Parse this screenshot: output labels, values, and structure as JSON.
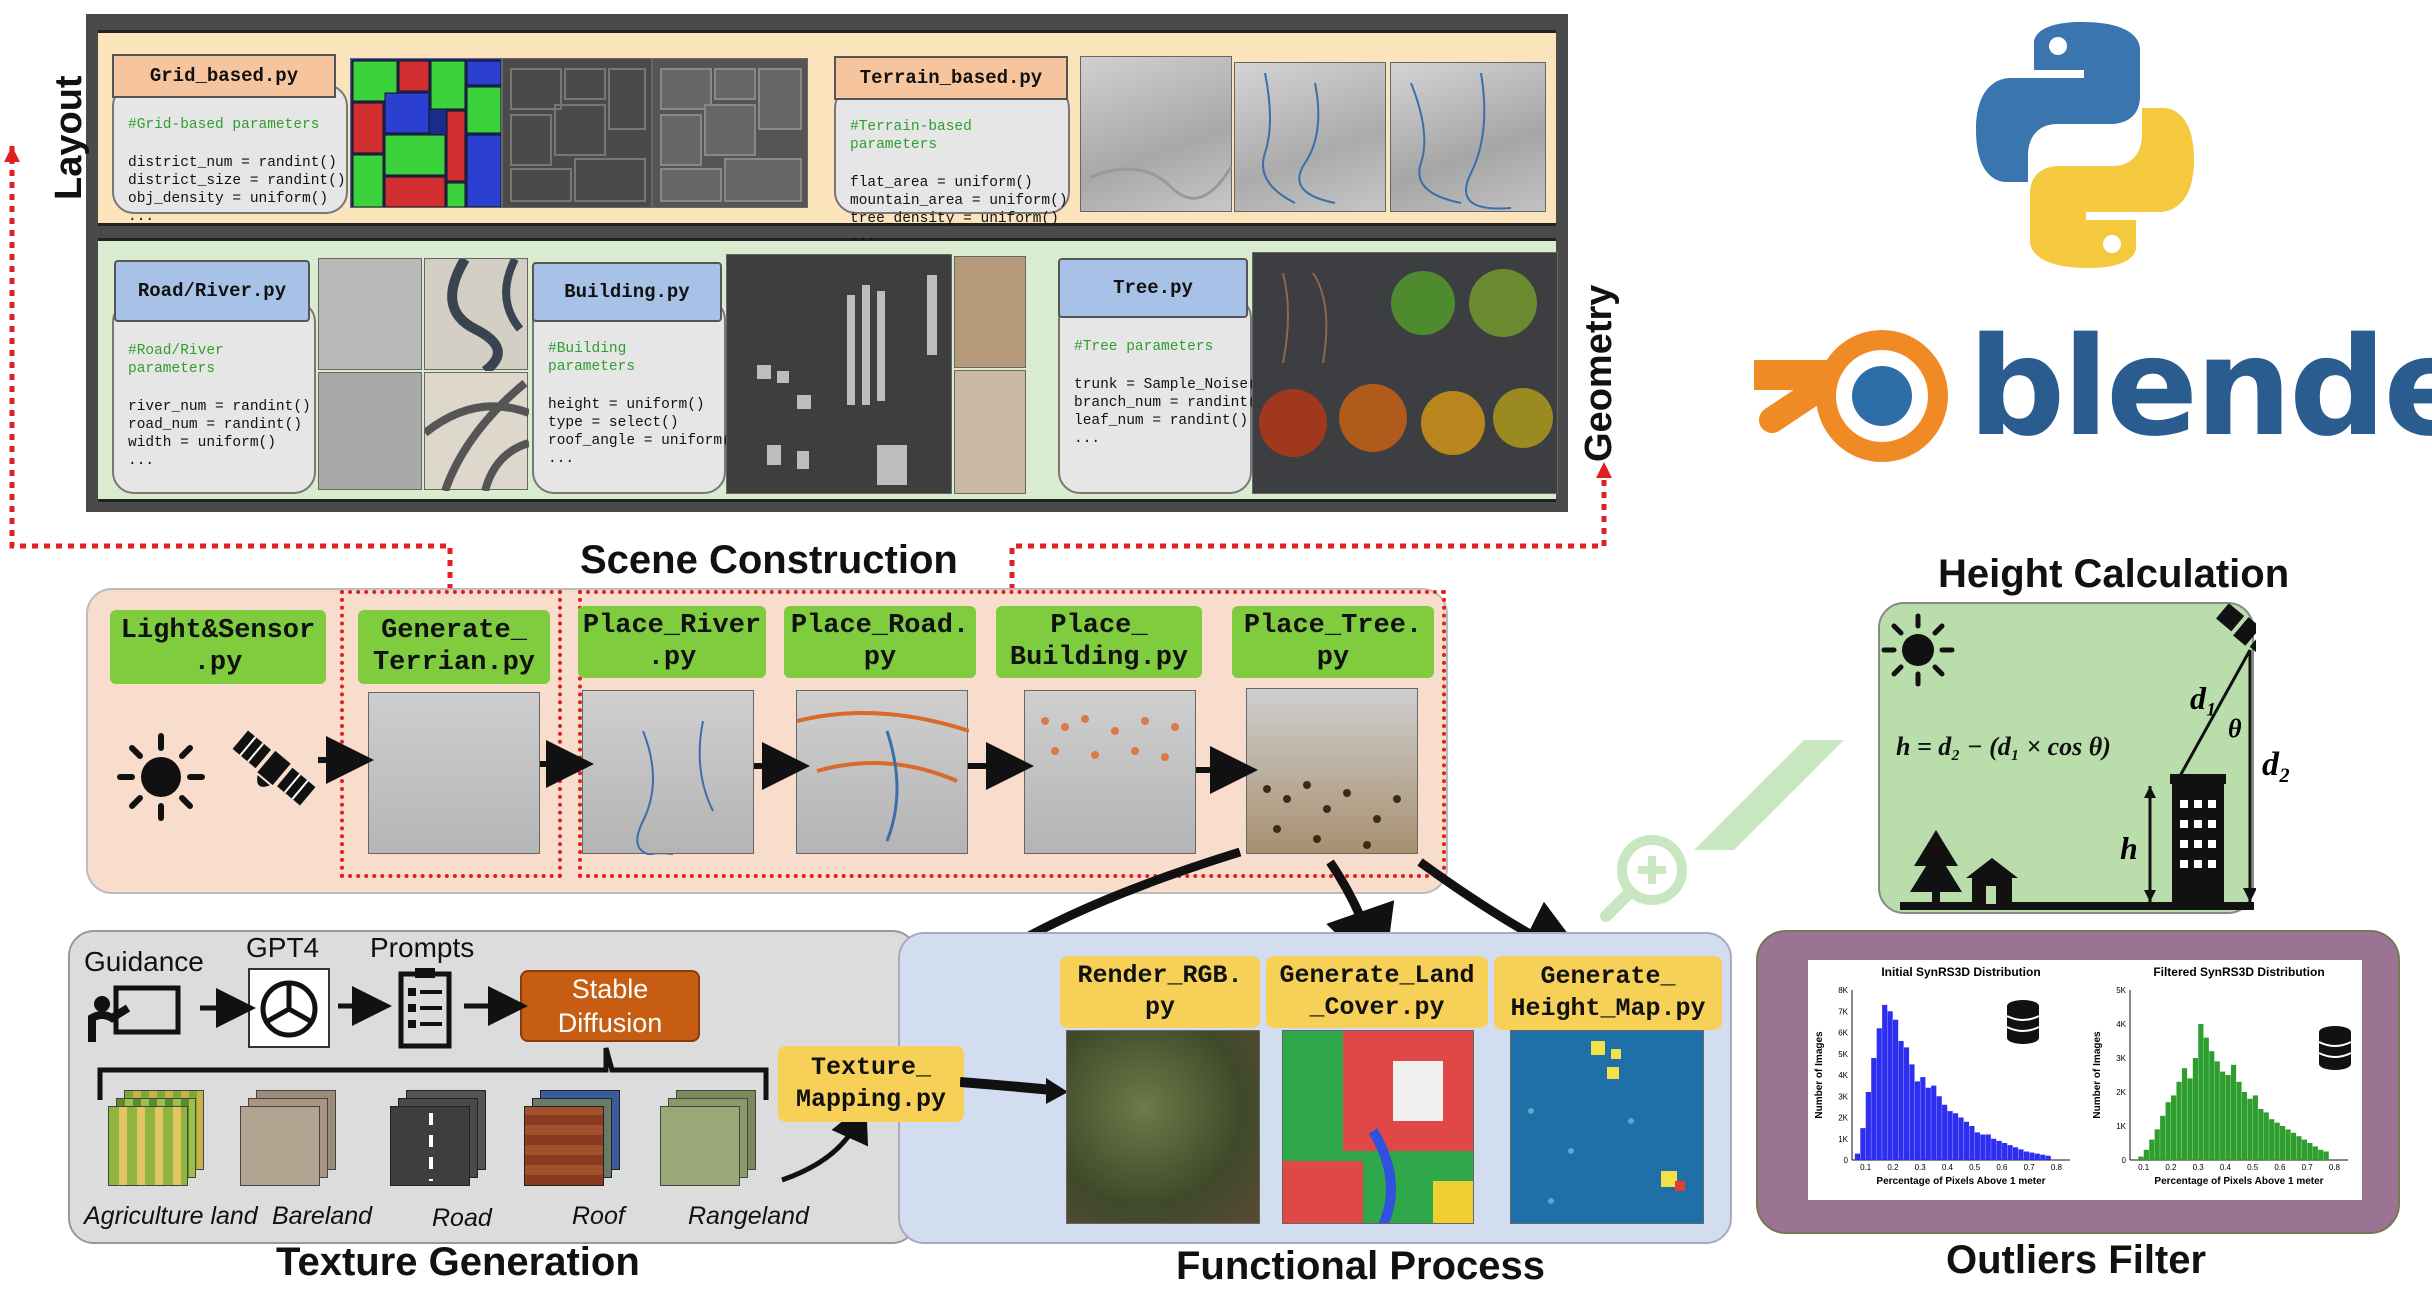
{
  "top": {
    "layout_label": "Layout",
    "geometry_label": "Geometry",
    "grid": {
      "file": "Grid_based.py",
      "comment": "#Grid-based parameters",
      "lines": [
        "district_num = randint()",
        "district_size = randint()",
        "obj_density = uniform()",
        "..."
      ]
    },
    "terrain": {
      "file": "Terrain_based.py",
      "comment": "#Terrain-based parameters",
      "lines": [
        "flat_area = uniform()",
        "mountain_area = uniform()",
        "tree_density = uniform()",
        "..."
      ]
    },
    "road": {
      "file": "Road/River.py",
      "comment": "#Road/River parameters",
      "lines": [
        "river_num = randint()",
        "road_num = randint()",
        "width = uniform()",
        "..."
      ]
    },
    "building": {
      "file": "Building.py",
      "comment": "#Building parameters",
      "lines": [
        "height = uniform()",
        "type = select()",
        "roof_angle = uniform()",
        "..."
      ]
    },
    "tree": {
      "file": "Tree.py",
      "comment": "#Tree parameters",
      "lines": [
        "trunk = Sample_Noise()",
        "branch_num = randint()",
        "leaf_num = randint()",
        "..."
      ]
    }
  },
  "logos": {
    "blender_text": "blender"
  },
  "scene": {
    "title": "Scene Construction",
    "steps": [
      {
        "label": "Light&Sensor\n.py"
      },
      {
        "label": "Generate_\nTerrian.py"
      },
      {
        "label": "Place_River\n.py"
      },
      {
        "label": "Place_Road.\npy"
      },
      {
        "label": "Place_\nBuilding.py"
      },
      {
        "label": "Place_Tree.\npy"
      }
    ]
  },
  "height": {
    "title": "Height Calculation",
    "formula": "h = d₂ − (d₁ × cos θ)",
    "d1": "d₁",
    "d2": "d₂",
    "theta": "θ",
    "h": "h"
  },
  "texture": {
    "title": "Texture Generation",
    "guidance": "Guidance",
    "gpt": "GPT4",
    "prompts": "Prompts",
    "stable": "Stable\nDiffusion",
    "items": [
      "Agriculture land",
      "Bareland",
      "Road",
      "Roof",
      "Rangeland"
    ]
  },
  "functional": {
    "title": "Functional Process",
    "texture_mapping": "Texture_\nMapping.py",
    "render": "Render_RGB.\npy",
    "landcover": "Generate_Land\n_Cover.py",
    "heightmap": "Generate_\nHeight_Map.py"
  },
  "outliers": {
    "title": "Outliers Filter",
    "charts_note": "histograms"
  },
  "chart_data": [
    {
      "type": "bar",
      "title": "Initial SynRS3D Distribution",
      "xlabel": "Percentage of Pixels Above 1 meter",
      "ylabel": "Number of Images",
      "yticks": [
        "0",
        "1K",
        "2K",
        "3K",
        "4K",
        "5K",
        "6K",
        "7K",
        "8K"
      ],
      "xticks": [
        "0.1",
        "0.2",
        "0.3",
        "0.4",
        "0.5",
        "0.6",
        "0.7",
        "0.8"
      ],
      "ylim": [
        0,
        8000
      ],
      "xlim": [
        0.05,
        0.85
      ],
      "x": [
        0.07,
        0.09,
        0.11,
        0.13,
        0.15,
        0.17,
        0.19,
        0.21,
        0.23,
        0.25,
        0.27,
        0.29,
        0.31,
        0.33,
        0.35,
        0.37,
        0.39,
        0.41,
        0.43,
        0.45,
        0.47,
        0.49,
        0.51,
        0.53,
        0.55,
        0.57,
        0.59,
        0.61,
        0.63,
        0.65,
        0.67,
        0.69,
        0.71,
        0.73,
        0.75,
        0.77
      ],
      "values": [
        300,
        1500,
        3200,
        4800,
        6200,
        7300,
        7000,
        6600,
        5600,
        5300,
        4500,
        3700,
        3900,
        3400,
        3500,
        3000,
        2600,
        2300,
        2200,
        2000,
        1800,
        1600,
        1300,
        1200,
        1200,
        1000,
        900,
        800,
        700,
        600,
        500,
        400,
        350,
        300,
        250,
        200
      ],
      "color": "#2e2ef0"
    },
    {
      "type": "bar",
      "title": "Filtered SynRS3D Distribution",
      "xlabel": "Percentage of Pixels Above 1 meter",
      "ylabel": "Number of Images",
      "yticks": [
        "0",
        "1K",
        "2K",
        "3K",
        "4K",
        "5K"
      ],
      "xticks": [
        "0.1",
        "0.2",
        "0.3",
        "0.4",
        "0.5",
        "0.6",
        "0.7",
        "0.8"
      ],
      "ylim": [
        0,
        5000
      ],
      "xlim": [
        0.05,
        0.85
      ],
      "x": [
        0.09,
        0.11,
        0.13,
        0.15,
        0.17,
        0.19,
        0.21,
        0.23,
        0.25,
        0.27,
        0.29,
        0.31,
        0.33,
        0.35,
        0.37,
        0.39,
        0.41,
        0.43,
        0.45,
        0.47,
        0.49,
        0.51,
        0.53,
        0.55,
        0.57,
        0.59,
        0.61,
        0.63,
        0.65,
        0.67,
        0.69,
        0.71,
        0.73,
        0.75,
        0.77
      ],
      "values": [
        100,
        300,
        600,
        900,
        1300,
        1700,
        1900,
        2300,
        2700,
        2400,
        3000,
        4000,
        3600,
        3200,
        2900,
        2600,
        2500,
        2800,
        2300,
        2000,
        1800,
        1900,
        1500,
        1400,
        1200,
        1100,
        1000,
        900,
        800,
        700,
        600,
        500,
        400,
        300,
        250
      ],
      "color": "#2e9e2e"
    }
  ]
}
